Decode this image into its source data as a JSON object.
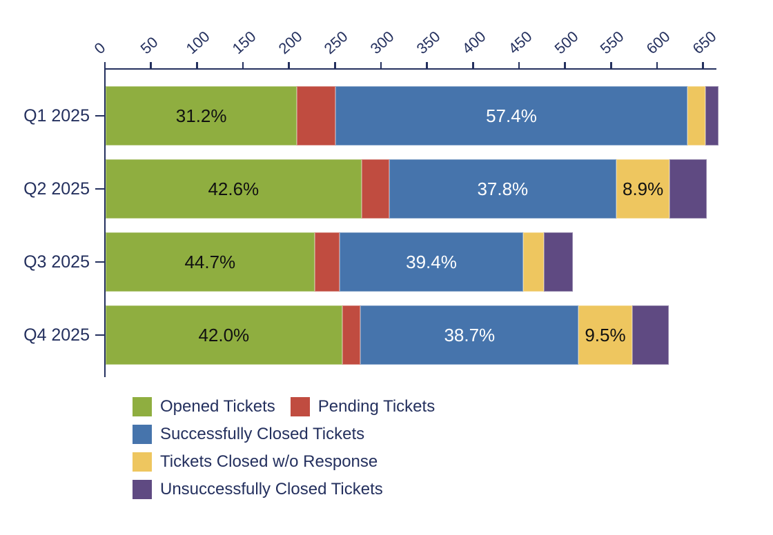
{
  "chart_data": {
    "type": "bar",
    "orientation": "horizontal",
    "stacked": true,
    "title": "",
    "xlabel": "",
    "ylabel": "",
    "grid": false,
    "legend_position": "bottom-left",
    "categories": [
      "Q1 2025",
      "Q2 2025",
      "Q3 2025",
      "Q4 2025"
    ],
    "x_axis": {
      "position": "top",
      "min": 0,
      "max": 650,
      "tick_step": 50,
      "ticks": [
        0,
        50,
        100,
        150,
        200,
        250,
        300,
        350,
        400,
        450,
        500,
        550,
        600,
        650
      ]
    },
    "series": [
      {
        "name": "Opened Tickets",
        "color": "#8fae40",
        "label_color": "#111111",
        "values": [
          208,
          278,
          227,
          257
        ],
        "percent_labels": [
          "31.2%",
          "42.6%",
          "44.7%",
          "42.0%"
        ]
      },
      {
        "name": "Pending Tickets",
        "color": "#c04c40",
        "label_color": "#111111",
        "values": [
          42,
          30,
          27,
          20
        ],
        "percent_labels": [
          "",
          "",
          "",
          ""
        ]
      },
      {
        "name": "Successfully Closed Tickets",
        "color": "#4674ac",
        "label_color": "#ffffff",
        "values": [
          382,
          247,
          200,
          237
        ],
        "percent_labels": [
          "57.4%",
          "37.8%",
          "39.4%",
          "38.7%"
        ]
      },
      {
        "name": "Tickets Closed w/o Response",
        "color": "#eec65f",
        "label_color": "#111111",
        "values": [
          20,
          58,
          22,
          58
        ],
        "percent_labels": [
          "",
          "8.9%",
          "",
          "9.5%"
        ]
      },
      {
        "name": "Unsuccessfully Closed Tickets",
        "color": "#5f4a82",
        "label_color": "#111111",
        "values": [
          14,
          40,
          32,
          40
        ],
        "percent_labels": [
          "",
          "",
          "",
          ""
        ]
      }
    ],
    "bar_totals": [
      666,
      653,
      508,
      612
    ],
    "axis_color": "#24305e"
  },
  "legend": {
    "items": [
      {
        "label": "Opened Tickets",
        "color": "#8fae40"
      },
      {
        "label": "Pending Tickets",
        "color": "#c04c40"
      },
      {
        "label": "Successfully Closed Tickets",
        "color": "#4674ac"
      },
      {
        "label": "Tickets Closed w/o Response",
        "color": "#eec65f"
      },
      {
        "label": "Unsuccessfully Closed Tickets",
        "color": "#5f4a82"
      }
    ]
  }
}
